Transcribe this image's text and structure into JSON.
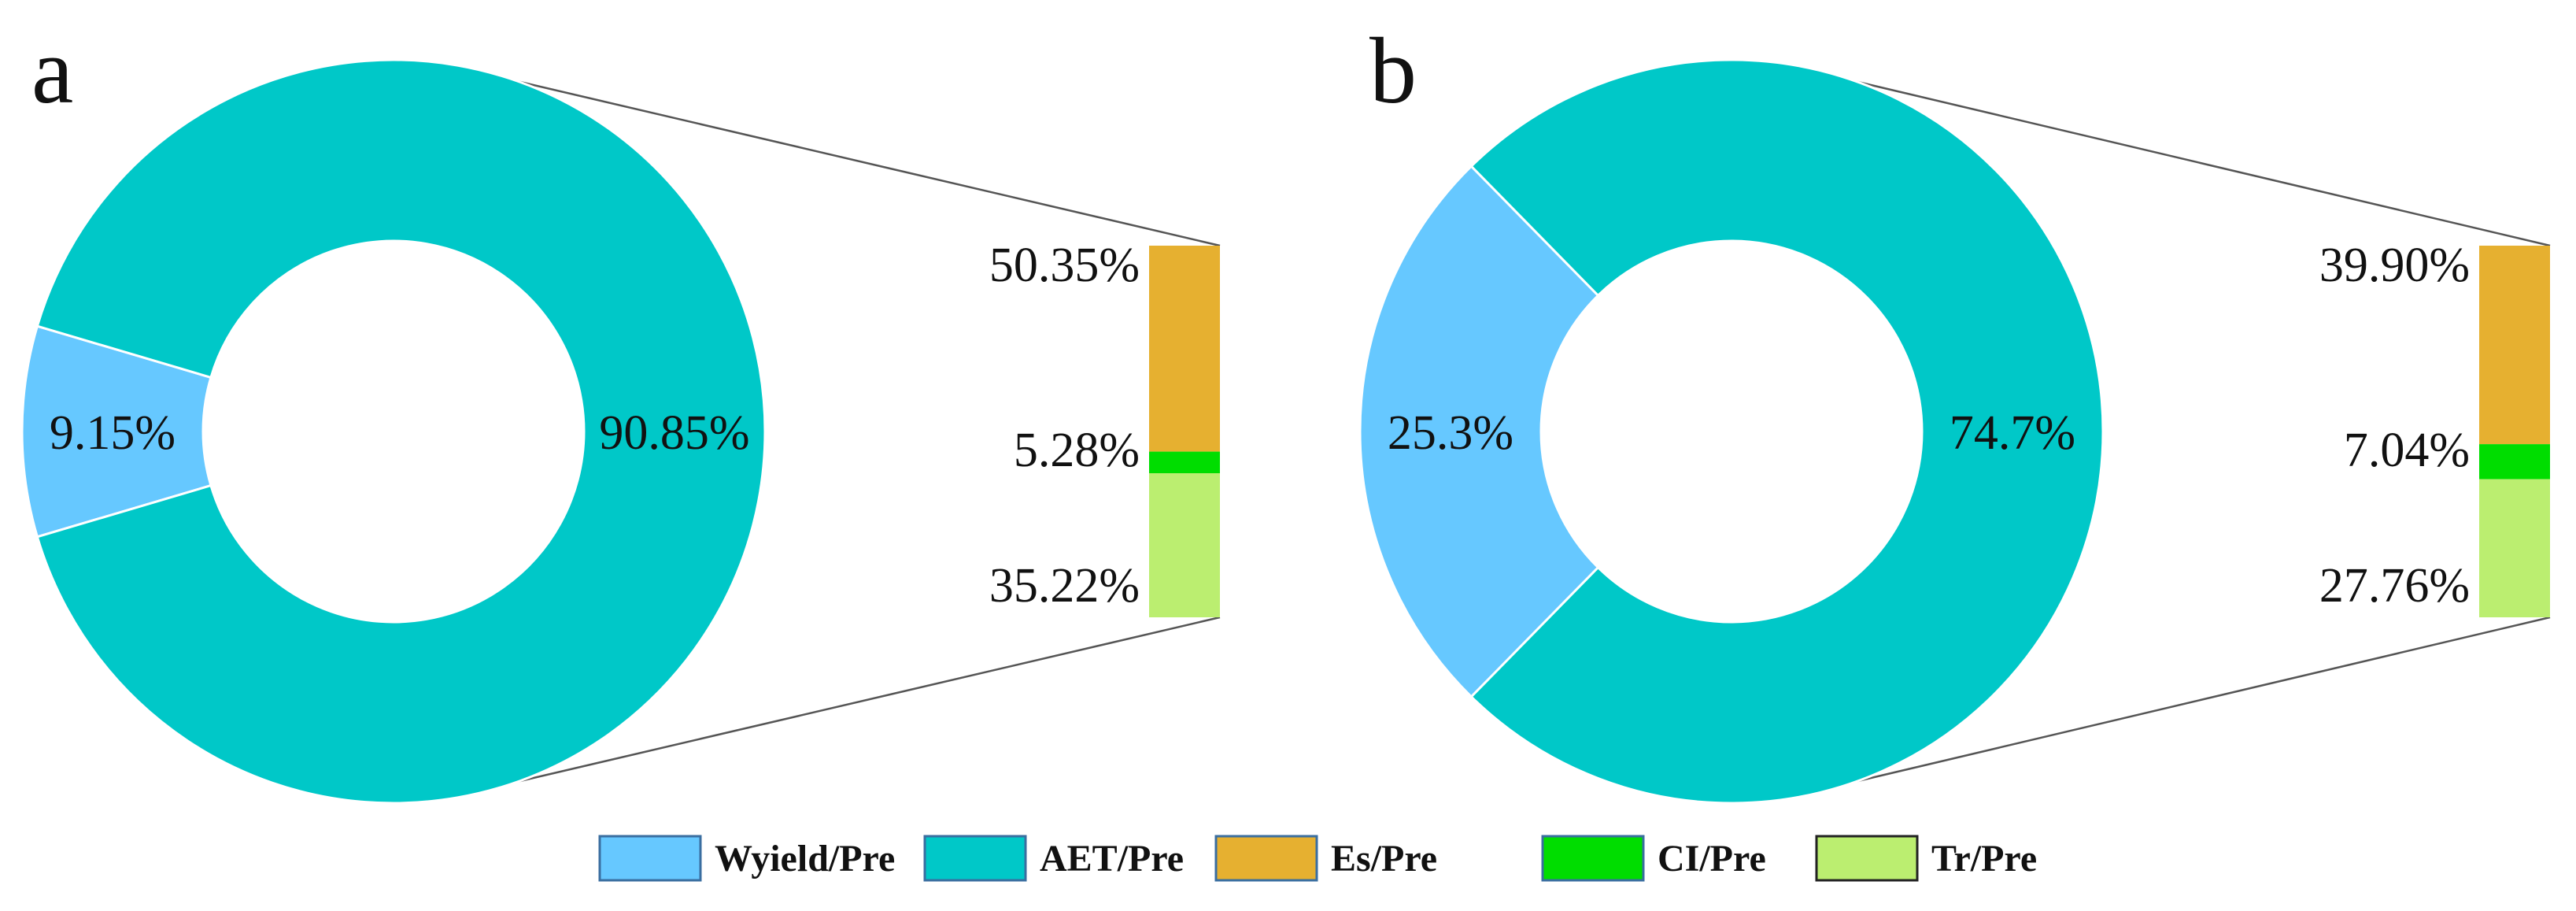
{
  "colors": {
    "Wyield/Pre": "#66c8ff",
    "AET/Pre": "#00c8c8",
    "Es/Pre": "#e6b030",
    "CI/Pre": "#00dd00",
    "Tr/Pre": "#bbee70"
  },
  "chart_data": [
    {
      "type": "pie",
      "panel": "a",
      "donut": [
        {
          "category": "Wyield/Pre",
          "value": 9.15,
          "label": "9.15%"
        },
        {
          "category": "AET/Pre",
          "value": 90.85,
          "label": "90.85%"
        }
      ],
      "breakdown_of": "AET/Pre",
      "stacked_bar": [
        {
          "category": "Es/Pre",
          "value": 50.35,
          "label": "50.35%"
        },
        {
          "category": "CI/Pre",
          "value": 5.28,
          "label": "5.28%"
        },
        {
          "category": "Tr/Pre",
          "value": 35.22,
          "label": "35.22%"
        }
      ]
    },
    {
      "type": "pie",
      "panel": "b",
      "donut": [
        {
          "category": "Wyield/Pre",
          "value": 25.3,
          "label": "25.3%"
        },
        {
          "category": "AET/Pre",
          "value": 74.7,
          "label": "74.7%"
        }
      ],
      "breakdown_of": "AET/Pre",
      "stacked_bar": [
        {
          "category": "Es/Pre",
          "value": 39.9,
          "label": "39.90%"
        },
        {
          "category": "CI/Pre",
          "value": 7.04,
          "label": "7.04%"
        },
        {
          "category": "Tr/Pre",
          "value": 27.76,
          "label": "27.76%"
        }
      ]
    }
  ],
  "legend": [
    {
      "name": "Wyield/Pre"
    },
    {
      "name": "AET/Pre"
    },
    {
      "name": "Es/Pre"
    },
    {
      "name": "CI/Pre"
    },
    {
      "name": "Tr/Pre"
    }
  ]
}
